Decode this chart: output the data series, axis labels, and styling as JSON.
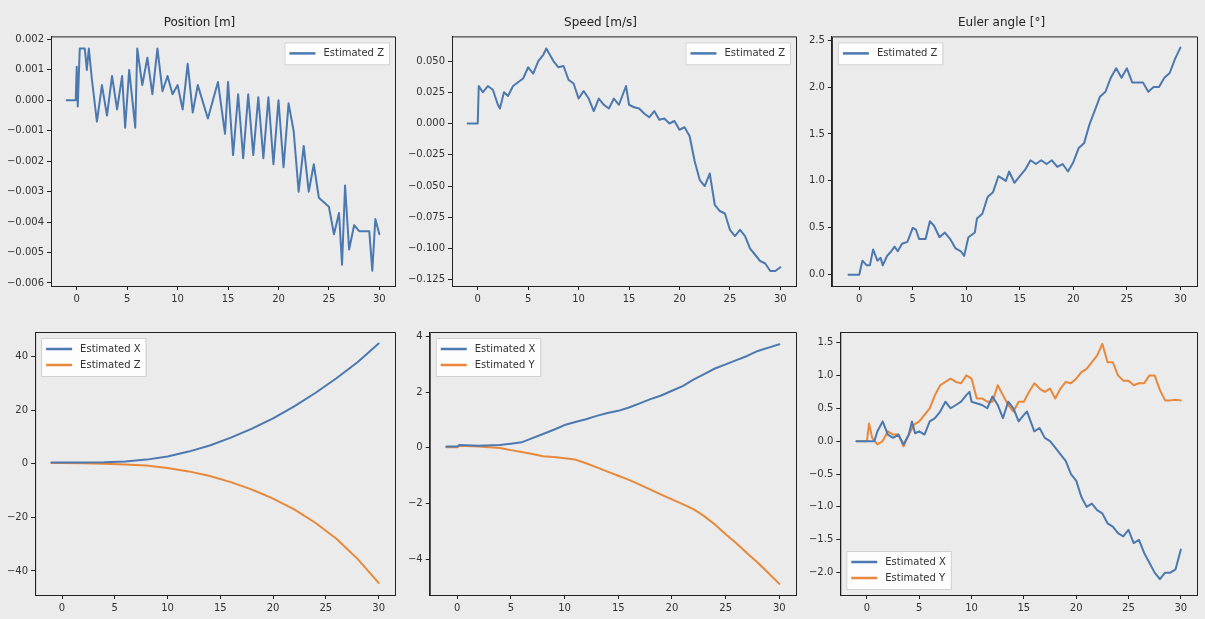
{
  "chart_data": [
    {
      "type": "line",
      "title": "Position [m]",
      "legend": "top right",
      "grid": false,
      "xlim": [
        -2.55,
        31.55
      ],
      "xticks": [
        0,
        5,
        10,
        15,
        20,
        25,
        30
      ],
      "ylim": [
        -0.0061,
        0.0021
      ],
      "yticks": [
        {
          "value": -0.006,
          "label": "−0.006"
        },
        {
          "value": -0.005,
          "label": "−0.005"
        },
        {
          "value": -0.004,
          "label": "−0.004"
        },
        {
          "value": -0.003,
          "label": "−0.003"
        },
        {
          "value": -0.002,
          "label": "−0.002"
        },
        {
          "value": -0.001,
          "label": "−0.001"
        },
        {
          "value": 0,
          "label": "0.000"
        },
        {
          "value": 0.001,
          "label": "0.001"
        },
        {
          "value": 0.002,
          "label": "0.002"
        }
      ],
      "series": [
        {
          "name": "Estimated Z",
          "color": "#4c78b0",
          "x": [
            -1,
            -0.1,
            0,
            0.1,
            0.3,
            0.8,
            1,
            1.2,
            1.5,
            2,
            2.5,
            3,
            3.5,
            4,
            4.5,
            4.8,
            5.2,
            5.8,
            6,
            6.5,
            7,
            7.5,
            8,
            8.5,
            9,
            9.5,
            10,
            10.5,
            11,
            11.5,
            12,
            13,
            14,
            14.7,
            15,
            15.5,
            16,
            16.5,
            17,
            17.5,
            18,
            18.5,
            19,
            19.5,
            20,
            20.5,
            21,
            21.5,
            22,
            22.5,
            23,
            23.5,
            24,
            25,
            25.5,
            26,
            26.3,
            26.6,
            27,
            27.5,
            28,
            29,
            29.3,
            29.6,
            30
          ],
          "values": [
            0,
            0,
            0.0011,
            -0.0002,
            0.0017,
            0.0017,
            0.001,
            0.0017,
            0.0007,
            -0.0007,
            0.0005,
            -0.0005,
            0.0008,
            -0.0003,
            0.0008,
            -0.0009,
            0.001,
            -0.0009,
            0.0017,
            0.0005,
            0.0014,
            0.0002,
            0.0017,
            0.0003,
            0.0008,
            0.0002,
            0.0005,
            -0.0003,
            0.0012,
            -0.0004,
            0.0005,
            -0.0006,
            0.0006,
            -0.0011,
            0.0006,
            -0.0018,
            0.0002,
            -0.0019,
            0.0002,
            -0.0018,
            0.0001,
            -0.0019,
            0.0001,
            -0.0021,
            0,
            -0.0022,
            -0.0001,
            -0.001,
            -0.003,
            -0.0015,
            -0.003,
            -0.0021,
            -0.0032,
            -0.0035,
            -0.0044,
            -0.0037,
            -0.0054,
            -0.0028,
            -0.0049,
            -0.0041,
            -0.0043,
            -0.0043,
            -0.0056,
            -0.0039,
            -0.0044
          ]
        }
      ]
    },
    {
      "type": "line",
      "title": "Speed [m/s]",
      "legend": "top right",
      "grid": false,
      "xlim": [
        -2.55,
        31.55
      ],
      "xticks": [
        0,
        5,
        10,
        15,
        20,
        25,
        30
      ],
      "ylim": [
        -0.13,
        0.0697
      ],
      "yticks": [
        {
          "value": -0.125,
          "label": "−0.125"
        },
        {
          "value": -0.1,
          "label": "−0.100"
        },
        {
          "value": -0.075,
          "label": "−0.075"
        },
        {
          "value": -0.05,
          "label": "−0.050"
        },
        {
          "value": -0.025,
          "label": "−0.025"
        },
        {
          "value": 0,
          "label": "0.000"
        },
        {
          "value": 0.025,
          "label": "0.025"
        },
        {
          "value": 0.05,
          "label": "0.050"
        }
      ],
      "series": [
        {
          "name": "Estimated Z",
          "color": "#4c78b0",
          "x": [
            -1,
            0,
            0.1,
            0.5,
            1,
            1.5,
            2,
            2.2,
            2.6,
            3,
            3.5,
            4,
            4.5,
            5,
            5.5,
            6,
            6.5,
            6.8,
            7.5,
            8,
            8.5,
            9,
            9.5,
            10,
            10.5,
            11,
            11.5,
            12,
            12.5,
            13,
            13.5,
            14,
            14.7,
            15,
            15.5,
            16,
            16.5,
            17,
            17.5,
            18,
            18.5,
            19,
            19.5,
            20,
            20.5,
            21,
            21.5,
            22,
            22.5,
            23,
            23.5,
            24,
            24.5,
            25,
            25.5,
            26,
            26.5,
            27,
            27.5,
            28,
            28.5,
            29,
            29.5,
            30
          ],
          "values": [
            0,
            0,
            0.03,
            0.025,
            0.03,
            0.027,
            0.015,
            0.012,
            0.025,
            0.022,
            0.03,
            0.033,
            0.036,
            0.045,
            0.04,
            0.05,
            0.055,
            0.06,
            0.05,
            0.045,
            0.046,
            0.035,
            0.032,
            0.02,
            0.026,
            0.02,
            0.01,
            0.02,
            0.015,
            0.012,
            0.02,
            0.015,
            0.03,
            0.015,
            0.013,
            0.012,
            0.008,
            0.005,
            0.01,
            0.003,
            0.004,
            0,
            0.002,
            -0.005,
            -0.003,
            -0.01,
            -0.03,
            -0.045,
            -0.05,
            -0.04,
            -0.065,
            -0.07,
            -0.072,
            -0.085,
            -0.09,
            -0.085,
            -0.09,
            -0.1,
            -0.105,
            -0.11,
            -0.112,
            -0.118,
            -0.118,
            -0.115
          ]
        }
      ]
    },
    {
      "type": "line",
      "title": "Euler angle [°]",
      "legend": "top left",
      "grid": false,
      "xlim": [
        -2.55,
        31.55
      ],
      "xticks": [
        0,
        5,
        10,
        15,
        20,
        25,
        30
      ],
      "ylim": [
        -0.12,
        2.54
      ],
      "yticks": [
        {
          "value": 0,
          "label": "0.0"
        },
        {
          "value": 0.5,
          "label": "0.5"
        },
        {
          "value": 1,
          "label": "1.0"
        },
        {
          "value": 1.5,
          "label": "1.5"
        },
        {
          "value": 2,
          "label": "2.0"
        },
        {
          "value": 2.5,
          "label": "2.5"
        }
      ],
      "series": [
        {
          "name": "Estimated Z",
          "color": "#4c78b0",
          "x": [
            -1,
            0,
            0.3,
            0.7,
            1,
            1.3,
            1.7,
            2,
            2.2,
            2.6,
            3,
            3.3,
            3.6,
            4,
            4.5,
            5,
            5.3,
            5.6,
            6.2,
            6.6,
            7,
            7.5,
            8,
            8.5,
            9,
            9.5,
            9.8,
            10.2,
            10.8,
            11,
            11.5,
            12,
            12.5,
            13,
            13.7,
            14,
            14.5,
            15,
            15.5,
            16,
            16.5,
            17,
            17.5,
            18,
            18.5,
            19,
            19.5,
            20,
            20.5,
            21,
            21.5,
            22,
            22.5,
            23,
            23.5,
            24,
            24.5,
            25,
            25.5,
            26,
            26.5,
            27,
            27.5,
            28,
            28.5,
            29,
            29.5,
            30
          ],
          "values": [
            0,
            0,
            0.15,
            0.1,
            0.1,
            0.27,
            0.15,
            0.18,
            0.1,
            0.2,
            0.25,
            0.3,
            0.25,
            0.33,
            0.35,
            0.5,
            0.48,
            0.38,
            0.38,
            0.57,
            0.52,
            0.4,
            0.45,
            0.38,
            0.28,
            0.25,
            0.2,
            0.4,
            0.45,
            0.6,
            0.65,
            0.83,
            0.88,
            1.05,
            1,
            1.1,
            0.98,
            1.05,
            1.12,
            1.22,
            1.18,
            1.22,
            1.18,
            1.22,
            1.15,
            1.18,
            1.1,
            1.2,
            1.35,
            1.4,
            1.6,
            1.75,
            1.9,
            1.95,
            2.1,
            2.2,
            2.1,
            2.2,
            2.05,
            2.05,
            2.05,
            1.95,
            2,
            2,
            2.1,
            2.15,
            2.3,
            2.42
          ]
        }
      ]
    },
    {
      "type": "line",
      "legend": "top left",
      "grid": false,
      "xlim": [
        -2.55,
        31.55
      ],
      "xticks": [
        0,
        5,
        10,
        15,
        20,
        25,
        30
      ],
      "ylim": [
        -49,
        49.3
      ],
      "yticks": [
        {
          "value": -40,
          "label": "−40"
        },
        {
          "value": -20,
          "label": "−20"
        },
        0,
        20,
        40
      ],
      "series": [
        {
          "name": "Estimated X",
          "color": "#4c78b0",
          "x": [
            -1,
            0,
            2,
            4,
            6,
            8,
            10,
            12,
            14,
            16,
            18,
            20,
            22,
            24,
            26,
            28,
            30
          ],
          "values": [
            0.5,
            0.5,
            0.5,
            0.6,
            0.9,
            1.6,
            2.8,
            4.6,
            6.9,
            9.8,
            13.2,
            17,
            21.5,
            26.5,
            32,
            38,
            45
          ]
        },
        {
          "name": "Estimated Z",
          "color": "#e8883a",
          "x": [
            -1,
            0,
            2,
            4,
            6,
            8,
            10,
            12,
            14,
            16,
            18,
            20,
            22,
            24,
            26,
            28,
            30
          ],
          "values": [
            0.3,
            0.3,
            0.2,
            0.1,
            -0.2,
            -0.6,
            -1.5,
            -2.8,
            -4.5,
            -6.8,
            -9.6,
            -13,
            -17,
            -22,
            -28,
            -35.5,
            -44.5
          ]
        }
      ]
    },
    {
      "type": "line",
      "legend": "top left",
      "grid": false,
      "xlim": [
        -2.55,
        31.55
      ],
      "xticks": [
        0,
        5,
        10,
        15,
        20,
        25,
        30
      ],
      "ylim": [
        -5.28,
        4.16
      ],
      "yticks": [
        {
          "value": -4,
          "label": "−4"
        },
        {
          "value": -2,
          "label": "−2"
        },
        0,
        2,
        4
      ],
      "series": [
        {
          "name": "Estimated X",
          "color": "#4c78b0",
          "x": [
            -1,
            0,
            0.2,
            2,
            4,
            5,
            6,
            7,
            8,
            9,
            10,
            11,
            12,
            13,
            14,
            15,
            16,
            17,
            18,
            19,
            20,
            21,
            22,
            23,
            24,
            25,
            26,
            27,
            28,
            29,
            30
          ],
          "values": [
            0.05,
            0.05,
            0.1,
            0.08,
            0.1,
            0.15,
            0.2,
            0.35,
            0.5,
            0.65,
            0.82,
            0.93,
            1.03,
            1.15,
            1.25,
            1.33,
            1.45,
            1.6,
            1.75,
            1.88,
            2.05,
            2.22,
            2.45,
            2.65,
            2.85,
            3,
            3.15,
            3.3,
            3.48,
            3.6,
            3.72
          ]
        },
        {
          "name": "Estimated Y",
          "color": "#e8883a",
          "x": [
            -1,
            0,
            0.2,
            2,
            4,
            5,
            6,
            7,
            8,
            9,
            10,
            11,
            12,
            13,
            14,
            15,
            16,
            17,
            18,
            19,
            20,
            21,
            22,
            23,
            24,
            25,
            26,
            27,
            28,
            29,
            30
          ],
          "values": [
            0.02,
            0.02,
            0.08,
            0.05,
            0,
            -0.08,
            -0.15,
            -0.22,
            -0.3,
            -0.33,
            -0.37,
            -0.42,
            -0.55,
            -0.7,
            -0.85,
            -1,
            -1.15,
            -1.32,
            -1.5,
            -1.68,
            -1.85,
            -2.02,
            -2.2,
            -2.45,
            -2.75,
            -3.1,
            -3.42,
            -3.78,
            -4.12,
            -4.5,
            -4.88
          ]
        }
      ]
    },
    {
      "type": "line",
      "legend": "bottom left",
      "grid": false,
      "xlim": [
        -2.55,
        31.55
      ],
      "xticks": [
        0,
        5,
        10,
        15,
        20,
        25,
        30
      ],
      "ylim": [
        -2.34,
        1.66
      ],
      "yticks": [
        {
          "value": -2,
          "label": "−2.0"
        },
        {
          "value": -1.5,
          "label": "−1.5"
        },
        {
          "value": -1,
          "label": "−1.0"
        },
        {
          "value": -0.5,
          "label": "−0.5"
        },
        {
          "value": 0,
          "label": "0.0"
        },
        {
          "value": 0.5,
          "label": "0.5"
        },
        {
          "value": 1,
          "label": "1.0"
        },
        {
          "value": 1.5,
          "label": "1.5"
        }
      ],
      "series": [
        {
          "name": "Estimated X",
          "color": "#4c78b0",
          "x": [
            -1,
            0,
            0.7,
            1,
            1.5,
            2,
            2.5,
            3,
            3.5,
            4,
            4.3,
            4.6,
            5,
            5.5,
            6,
            6.5,
            7,
            7.5,
            8,
            8.5,
            9,
            9.5,
            9.8,
            10,
            11,
            11.5,
            12,
            12.5,
            13,
            13.5,
            14,
            14.5,
            15,
            15.3,
            16,
            16.5,
            17,
            17.5,
            18,
            18.5,
            19,
            19.5,
            20,
            20.5,
            21,
            21.5,
            22,
            22.5,
            23,
            23.5,
            24,
            24.5,
            25,
            25.5,
            26,
            26.5,
            27,
            27.5,
            28,
            28.5,
            29,
            29.5,
            30
          ],
          "values": [
            0,
            0,
            0,
            0.15,
            0.3,
            0.1,
            0.05,
            0.1,
            -0.05,
            0.1,
            0.3,
            0.12,
            0.15,
            0.1,
            0.3,
            0.35,
            0.45,
            0.6,
            0.5,
            0.55,
            0.6,
            0.7,
            0.75,
            0.6,
            0.55,
            0.5,
            0.68,
            0.55,
            0.35,
            0.6,
            0.5,
            0.3,
            0.4,
            0.45,
            0.15,
            0.2,
            0.05,
            0,
            -0.1,
            -0.2,
            -0.3,
            -0.5,
            -0.6,
            -0.85,
            -1,
            -0.95,
            -1.05,
            -1.1,
            -1.25,
            -1.3,
            -1.4,
            -1.45,
            -1.35,
            -1.55,
            -1.5,
            -1.7,
            -1.85,
            -2,
            -2.1,
            -2,
            -2,
            -1.95,
            -1.65
          ]
        },
        {
          "name": "Estimated Y",
          "color": "#e8883a",
          "x": [
            -1,
            0,
            0.2,
            0.5,
            1,
            1.5,
            2,
            2.5,
            3,
            3.5,
            4,
            4.5,
            5,
            5.5,
            6,
            6.5,
            7,
            7.5,
            8,
            8.5,
            9,
            9.5,
            10,
            10.5,
            11,
            11.5,
            12,
            12.5,
            13,
            13.5,
            14,
            14.5,
            15,
            15.5,
            16,
            16.5,
            17,
            17.5,
            18,
            18.5,
            19,
            19.5,
            20,
            20.5,
            21,
            21.5,
            22,
            22.5,
            23,
            23.5,
            24,
            24.5,
            25,
            25.5,
            26,
            26.5,
            27,
            27.5,
            28,
            28.5,
            29,
            29.5,
            30
          ],
          "values": [
            0,
            0,
            0.27,
            0.05,
            -0.05,
            0,
            0.15,
            0.1,
            0.1,
            -0.08,
            0.1,
            0.25,
            0.3,
            0.4,
            0.5,
            0.7,
            0.85,
            0.9,
            0.95,
            0.9,
            0.88,
            1,
            0.95,
            0.65,
            0.65,
            0.6,
            0.6,
            0.85,
            0.7,
            0.55,
            0.45,
            0.6,
            0.6,
            0.75,
            0.88,
            0.8,
            0.75,
            0.8,
            0.65,
            0.8,
            0.9,
            0.88,
            0.95,
            1.05,
            1.1,
            1.2,
            1.3,
            1.48,
            1.2,
            1.2,
            1,
            0.92,
            0.92,
            0.85,
            0.88,
            0.88,
            1,
            1,
            0.78,
            0.62,
            0.62,
            0.63,
            0.62
          ]
        }
      ]
    }
  ]
}
